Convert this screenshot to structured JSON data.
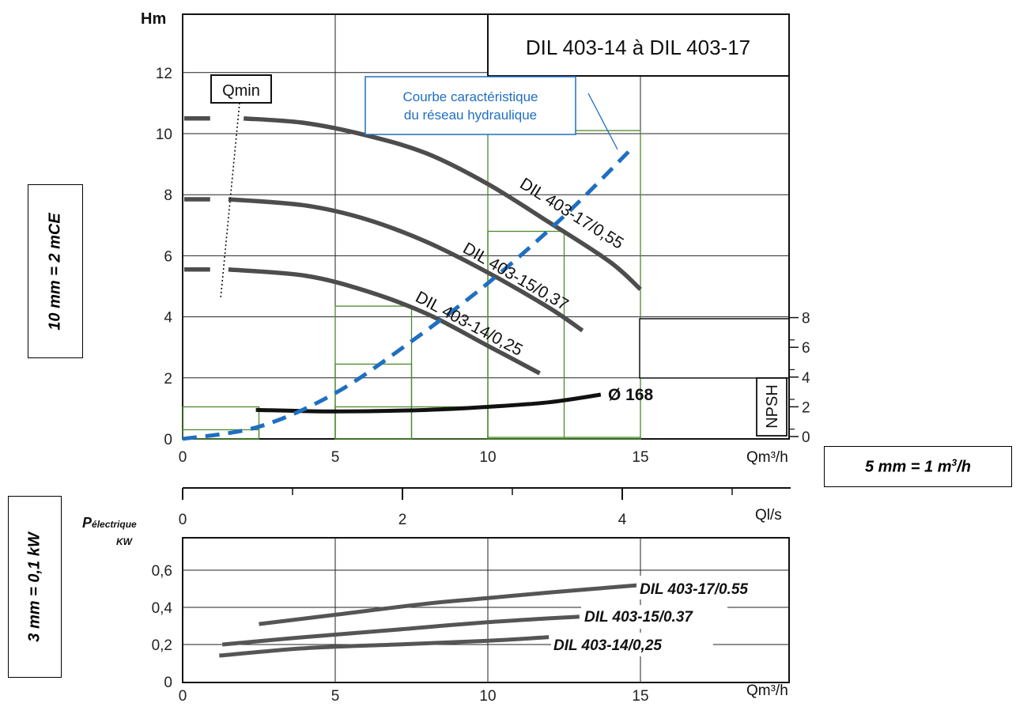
{
  "side_notes": {
    "vertical_scale": "10 mm = 2 mCE",
    "horizontal_scale_flow": "5 mm = 1 m",
    "horizontal_scale_flow_sup": "3",
    "horizontal_scale_flow_suffix": "/h",
    "power_scale": "3 mm = 0,1 kW"
  },
  "chart_data": [
    {
      "type": "line",
      "title": "DIL 403-14 à DIL 403-17",
      "ylabel": "Hm",
      "xlabel": "Qm³/h",
      "xlim": [
        0,
        20
      ],
      "ylim": [
        0,
        14
      ],
      "x_ticks": [
        "0",
        "5",
        "10",
        "15"
      ],
      "y_ticks": [
        "0",
        "2",
        "4",
        "6",
        "8",
        "10",
        "12"
      ],
      "grid": true,
      "qmin_label": "Qmin",
      "series": [
        {
          "name": "DIL 403-17/0,55",
          "color": "#4d4d4d",
          "x": [
            2,
            4,
            6,
            8,
            10,
            12,
            14,
            15
          ],
          "y": [
            10.5,
            10.35,
            9.95,
            9.35,
            8.35,
            7.1,
            5.8,
            4.9
          ]
        },
        {
          "name": "DIL 403-15/0,37",
          "color": "#4d4d4d",
          "x": [
            1.5,
            4,
            6,
            8,
            10,
            12,
            13.1
          ],
          "y": [
            7.85,
            7.65,
            7.2,
            6.45,
            5.45,
            4.3,
            3.55
          ]
        },
        {
          "name": "DIL 403-14/0,25",
          "color": "#4d4d4d",
          "x": [
            1.5,
            4,
            6,
            8,
            10,
            11.7
          ],
          "y": [
            5.55,
            5.35,
            4.85,
            4.1,
            3.05,
            2.15
          ]
        },
        {
          "name": "Ø 168",
          "color": "#111111",
          "x": [
            2.4,
            5,
            8,
            10,
            12,
            13.7
          ],
          "y": [
            0.95,
            0.9,
            0.95,
            1.05,
            1.2,
            1.45
          ]
        },
        {
          "name": "Courbe caractéristique du réseau hydraulique",
          "color": "#1f6fc1",
          "dashed": true,
          "x": [
            0,
            2.5,
            5,
            7.5,
            10,
            12.5,
            14.8
          ],
          "y": [
            0,
            0.4,
            1.5,
            3.2,
            5.1,
            7.3,
            9.6
          ]
        }
      ],
      "npsh": {
        "label": "NPSH",
        "ticks": [
          "0",
          "2",
          "4",
          "6",
          "8"
        ]
      },
      "flow_ls_axis": {
        "label": "Ql/s",
        "ticks": [
          "0",
          "2",
          "4"
        ]
      }
    },
    {
      "type": "line",
      "ylabel": "P",
      "ylabel_sub": "électrique",
      "ylabel_unit": "KW",
      "xlabel": "Qm³/h",
      "xlim": [
        0,
        20
      ],
      "ylim": [
        0,
        0.8
      ],
      "x_ticks": [
        "0",
        "5",
        "10",
        "15"
      ],
      "y_ticks": [
        "0",
        "0,2",
        "0,4",
        "0,6"
      ],
      "grid": true,
      "series": [
        {
          "name": "DIL 403-17/0.55",
          "color": "#555555",
          "x": [
            2.5,
            5,
            8,
            10,
            12,
            15
          ],
          "y": [
            0.31,
            0.36,
            0.42,
            0.45,
            0.48,
            0.52
          ]
        },
        {
          "name": "DIL 403-15/0.37",
          "color": "#555555",
          "x": [
            1.3,
            4,
            7,
            10,
            13
          ],
          "y": [
            0.2,
            0.24,
            0.28,
            0.32,
            0.35
          ]
        },
        {
          "name": "DIL 403-14/0,25",
          "color": "#555555",
          "x": [
            1.2,
            4,
            7,
            10,
            12
          ],
          "y": [
            0.14,
            0.18,
            0.2,
            0.22,
            0.24
          ]
        }
      ]
    }
  ]
}
